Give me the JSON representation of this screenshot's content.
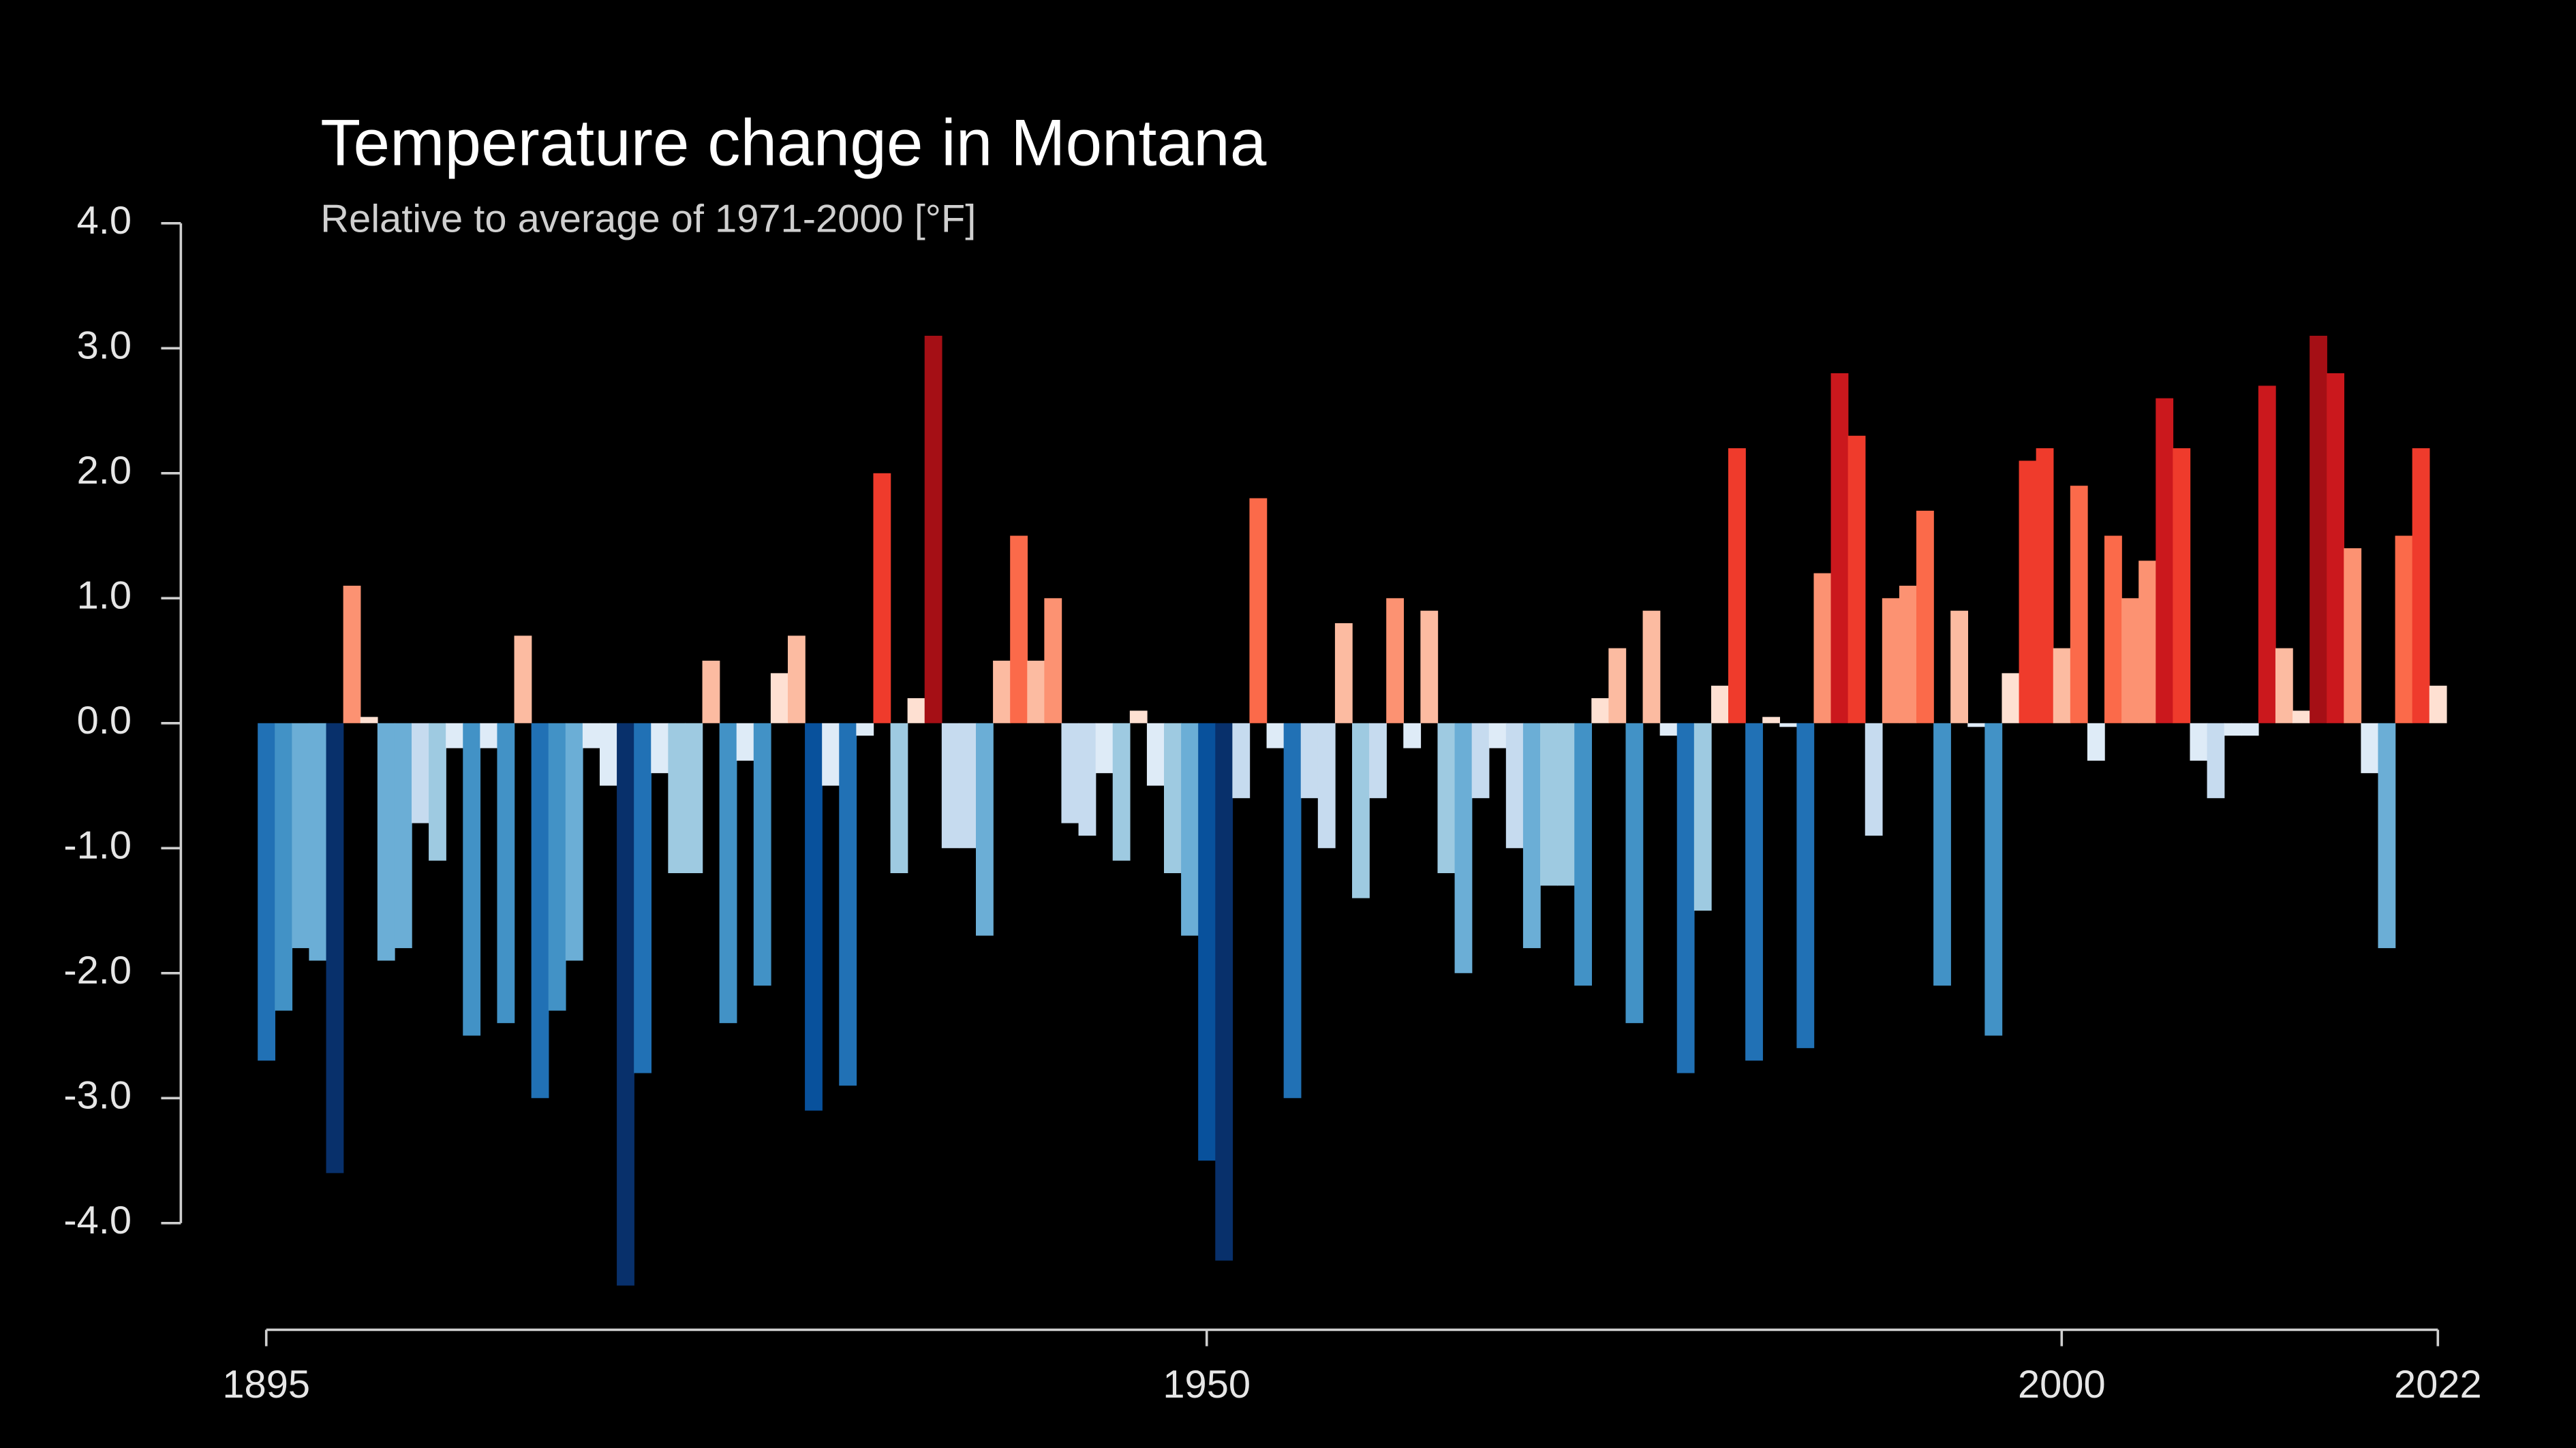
{
  "chart_data": {
    "type": "bar",
    "title": "Temperature change in Montana",
    "subtitle": "Relative to average of 1971-2000  [°F]",
    "x": [
      1895,
      1896,
      1897,
      1898,
      1899,
      1900,
      1901,
      1902,
      1903,
      1904,
      1905,
      1906,
      1907,
      1908,
      1909,
      1910,
      1911,
      1912,
      1913,
      1914,
      1915,
      1916,
      1917,
      1918,
      1919,
      1920,
      1921,
      1922,
      1923,
      1924,
      1925,
      1926,
      1927,
      1928,
      1929,
      1930,
      1931,
      1932,
      1933,
      1934,
      1935,
      1936,
      1937,
      1938,
      1939,
      1940,
      1941,
      1942,
      1943,
      1944,
      1945,
      1946,
      1947,
      1948,
      1949,
      1950,
      1951,
      1952,
      1953,
      1954,
      1955,
      1956,
      1957,
      1958,
      1959,
      1960,
      1961,
      1962,
      1963,
      1964,
      1965,
      1966,
      1967,
      1968,
      1969,
      1970,
      1971,
      1972,
      1973,
      1974,
      1975,
      1976,
      1977,
      1978,
      1979,
      1980,
      1981,
      1982,
      1983,
      1984,
      1985,
      1986,
      1987,
      1988,
      1989,
      1990,
      1991,
      1992,
      1993,
      1994,
      1995,
      1996,
      1997,
      1998,
      1999,
      2000,
      2001,
      2002,
      2003,
      2004,
      2005,
      2006,
      2007,
      2008,
      2009,
      2010,
      2011,
      2012,
      2013,
      2014,
      2015,
      2016,
      2017,
      2018,
      2019,
      2020,
      2021,
      2022
    ],
    "values": [
      -2.7,
      -2.3,
      -1.8,
      -1.9,
      -3.6,
      1.1,
      0.05,
      -1.9,
      -1.8,
      -0.8,
      -1.1,
      -0.2,
      -2.5,
      -0.2,
      -2.4,
      0.7,
      -3.0,
      -2.3,
      -1.9,
      -0.2,
      -0.5,
      -4.5,
      -2.8,
      -0.4,
      -1.2,
      -1.2,
      0.5,
      -2.4,
      -0.3,
      -2.1,
      0.4,
      0.7,
      -3.1,
      -0.5,
      -2.9,
      -0.1,
      2.0,
      -1.2,
      0.2,
      3.1,
      -1.0,
      -1.0,
      -1.7,
      0.5,
      1.5,
      0.5,
      1.0,
      -0.8,
      -0.9,
      -0.4,
      -1.1,
      0.1,
      -0.5,
      -1.2,
      -1.7,
      -3.5,
      -4.3,
      -0.6,
      1.8,
      -0.2,
      -3.0,
      -0.6,
      -1.0,
      0.8,
      -1.4,
      -0.6,
      1.0,
      -0.2,
      0.9,
      -1.2,
      -2.0,
      -0.6,
      -0.2,
      -1.0,
      -1.8,
      -1.3,
      -1.3,
      -2.1,
      0.2,
      0.6,
      -2.4,
      0.9,
      -0.1,
      -2.8,
      -1.5,
      0.3,
      2.2,
      -2.7,
      0.05,
      -0.03,
      -2.6,
      1.2,
      2.8,
      2.3,
      -0.9,
      1.0,
      1.1,
      1.7,
      -2.1,
      0.9,
      -0.03,
      -2.5,
      0.4,
      2.1,
      2.2,
      0.6,
      1.9,
      -0.3,
      1.5,
      1.0,
      1.3,
      2.6,
      2.2,
      -0.3,
      -0.6,
      -0.1,
      -0.1,
      2.7,
      0.6,
      0.1,
      3.1,
      2.8,
      1.4,
      -0.4,
      -1.8,
      1.5,
      2.2,
      0.3
    ],
    "palette": [
      "#08306b",
      "#08519c",
      "#2171b5",
      "#4292c6",
      "#6baed6",
      "#9ecae1",
      "#c6dbef",
      "#deebf7",
      "#fee0d2",
      "#fcbba1",
      "#fc9272",
      "#fb6a4a",
      "#ef3b2c",
      "#cb181d",
      "#a50f15",
      "#67000d"
    ],
    "xlim": [
      1895,
      2022
    ],
    "xticks": [
      1895,
      1950,
      2000,
      2022
    ],
    "ylim": [
      -4,
      4
    ],
    "yticks": [
      {
        "value": 4,
        "label": "4.0"
      },
      {
        "value": 3,
        "label": "3.0"
      },
      {
        "value": 2,
        "label": "2.0"
      },
      {
        "value": 1,
        "label": "1.0"
      },
      {
        "value": 0,
        "label": "0.0"
      },
      {
        "value": -1,
        "label": "-1.0"
      },
      {
        "value": -2,
        "label": "-2.0"
      },
      {
        "value": -3,
        "label": "-3.0"
      },
      {
        "value": -4,
        "label": "-4.0"
      }
    ],
    "grid": false
  }
}
